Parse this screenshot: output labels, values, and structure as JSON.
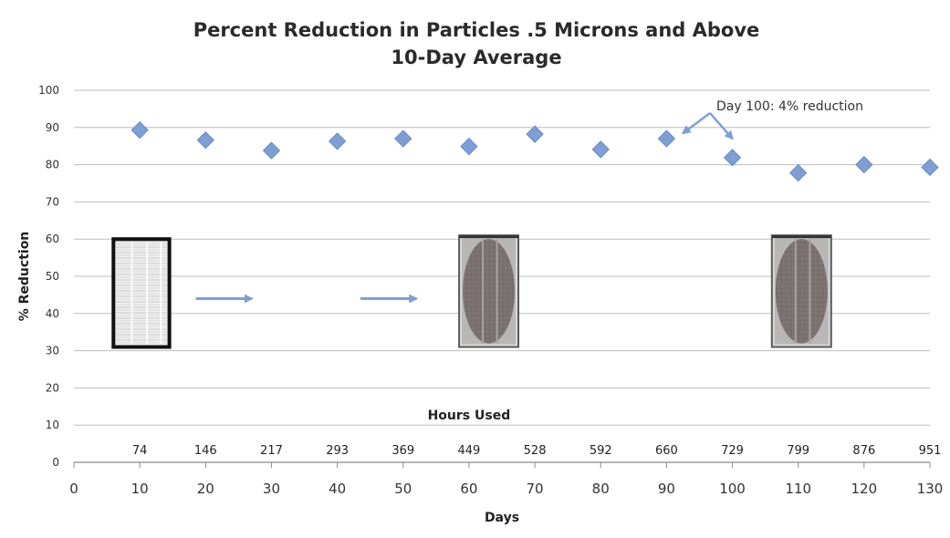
{
  "chart_data": {
    "type": "scatter",
    "title_line1": "Percent Reduction in Particles .5 Microns and Above",
    "title_line2": "10-Day Average",
    "xlabel": "Days",
    "ylabel": "% Reduction",
    "xlim": [
      0,
      130
    ],
    "ylim": [
      0,
      100
    ],
    "x_ticks": [
      0,
      10,
      20,
      30,
      40,
      50,
      60,
      70,
      80,
      90,
      100,
      110,
      120,
      130
    ],
    "y_ticks": [
      0,
      10,
      20,
      30,
      40,
      50,
      60,
      70,
      80,
      90,
      100
    ],
    "grid": "horizontal",
    "marker_color": "#7f9fd4",
    "x": [
      10,
      20,
      30,
      40,
      50,
      60,
      70,
      80,
      90,
      100,
      110,
      120,
      130
    ],
    "y": [
      89.3,
      86.6,
      83.8,
      86.3,
      87.0,
      84.9,
      88.2,
      84.1,
      87.0,
      81.9,
      77.8,
      80.0,
      79.3
    ],
    "hours_label": "Hours Used",
    "hours": [
      "74",
      "146",
      "217",
      "293",
      "369",
      "449",
      "528",
      "592",
      "660",
      "729",
      "799",
      "876",
      "951"
    ],
    "annotation": {
      "text": "Day 100: 4% reduction",
      "points_to_x": [
        92.5,
        100
      ]
    },
    "filter_images": [
      {
        "name": "new-filter",
        "x_range": [
          6,
          14.5
        ],
        "y_range": [
          31,
          60
        ]
      },
      {
        "name": "used-filter-mid",
        "x_range": [
          58.5,
          67.5
        ],
        "y_range": [
          31,
          61
        ]
      },
      {
        "name": "used-filter-end",
        "x_range": [
          106,
          115
        ],
        "y_range": [
          31,
          61
        ]
      }
    ],
    "arrow_color": "#7f9fd4",
    "flow_arrows": [
      {
        "x_range": [
          18.5,
          27
        ],
        "y": 44
      },
      {
        "x_range": [
          43.5,
          52
        ],
        "y": 44
      }
    ]
  }
}
